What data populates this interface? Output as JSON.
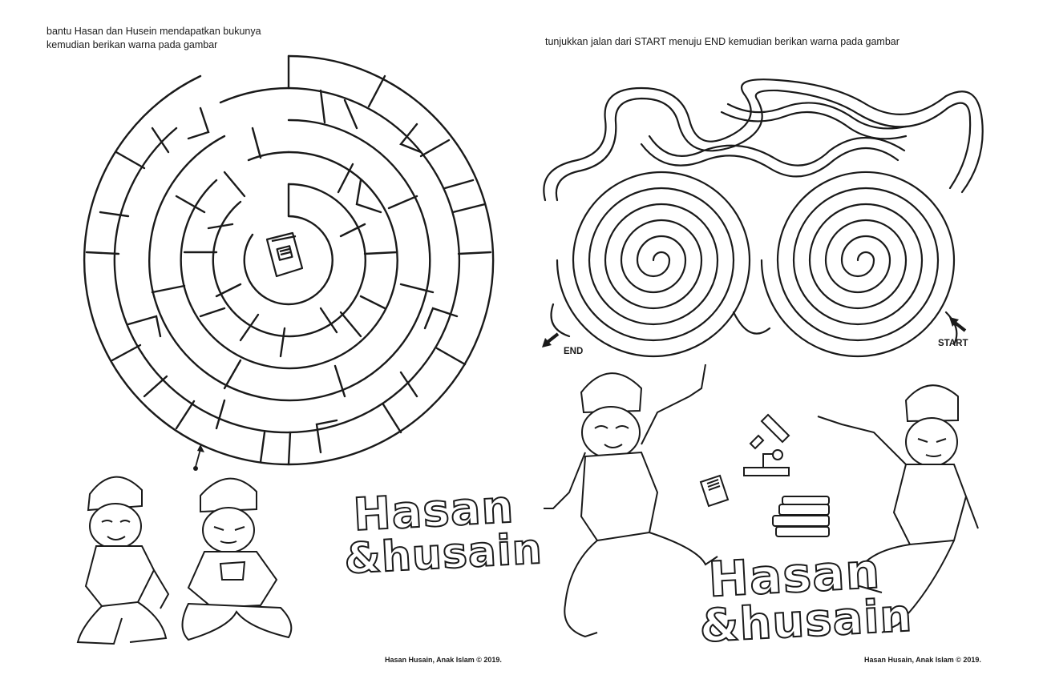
{
  "left_page": {
    "instruction_line1": "bantu Hasan dan Husein mendapatkan bukunya",
    "instruction_line2": "kemudian berikan warna pada gambar",
    "logo_line1": "Hasan",
    "logo_line2": "&husain",
    "copyright": "Hasan Husain, Anak Islam © 2019."
  },
  "right_page": {
    "instruction": "tunjukkan jalan dari START menuju END kemudian berikan warna pada gambar",
    "end_label": "END",
    "start_label": "START",
    "logo_line1": "Hasan",
    "logo_line2": "&husain",
    "copyright": "Hasan Husain, Anak Islam © 2019."
  },
  "colors": {
    "ink": "#1a1a1a",
    "paper": "#ffffff"
  }
}
